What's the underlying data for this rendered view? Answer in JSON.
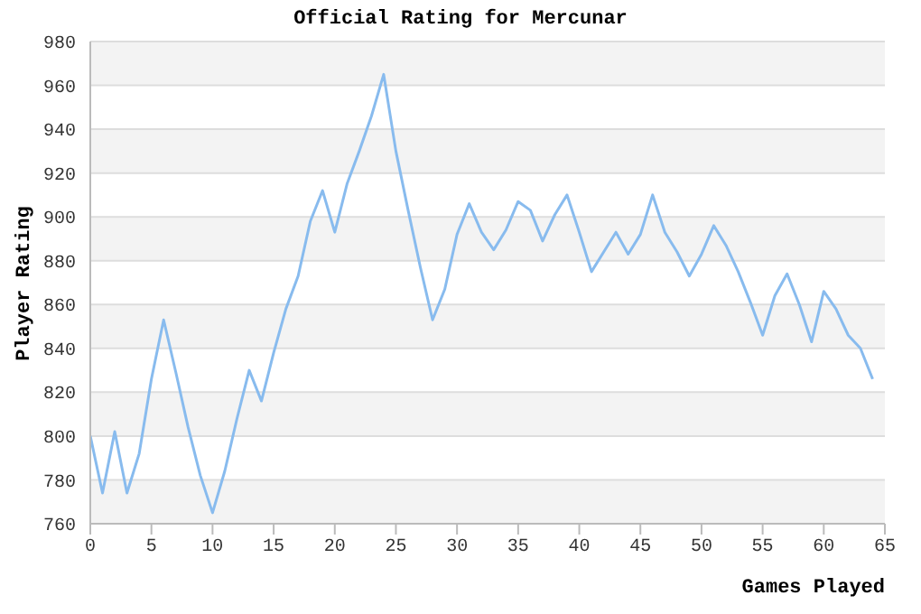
{
  "chart_data": {
    "type": "line",
    "title": "Official Rating for Mercunar",
    "xlabel": "Games Played",
    "ylabel": "Player Rating",
    "x": [
      0,
      1,
      2,
      3,
      4,
      5,
      6,
      7,
      8,
      9,
      10,
      11,
      12,
      13,
      14,
      15,
      16,
      17,
      18,
      19,
      20,
      21,
      22,
      23,
      24,
      25,
      26,
      27,
      28,
      29,
      30,
      31,
      32,
      33,
      34,
      35,
      36,
      37,
      38,
      39,
      40,
      41,
      42,
      43,
      44,
      45,
      46,
      47,
      48,
      49,
      50,
      51,
      52,
      53,
      54,
      55,
      56,
      57,
      58,
      59,
      60,
      61,
      62,
      63,
      64
    ],
    "series": [
      {
        "color": "#88bbee",
        "values": [
          800,
          774,
          802,
          774,
          792,
          826,
          853,
          829,
          804,
          782,
          765,
          784,
          808,
          830,
          816,
          838,
          858,
          873,
          898,
          912,
          893,
          915,
          930,
          946,
          965,
          930,
          903,
          877,
          853,
          867,
          892,
          906,
          893,
          885,
          894,
          907,
          903,
          889,
          901,
          910,
          893,
          875,
          884,
          893,
          883,
          892,
          910,
          893,
          884,
          873,
          883,
          896,
          887,
          875,
          861,
          846,
          864,
          874,
          860,
          843,
          866,
          858,
          846,
          840,
          826
        ]
      }
    ],
    "xlim": [
      0,
      65
    ],
    "xticks": [
      0,
      5,
      10,
      15,
      20,
      25,
      30,
      35,
      40,
      45,
      50,
      55,
      60,
      65
    ],
    "ylim": [
      760,
      980
    ],
    "yticks": [
      760,
      780,
      800,
      820,
      840,
      860,
      880,
      900,
      920,
      940,
      960,
      980
    ],
    "grid": "y",
    "marker": "none",
    "line_style": "solid"
  }
}
